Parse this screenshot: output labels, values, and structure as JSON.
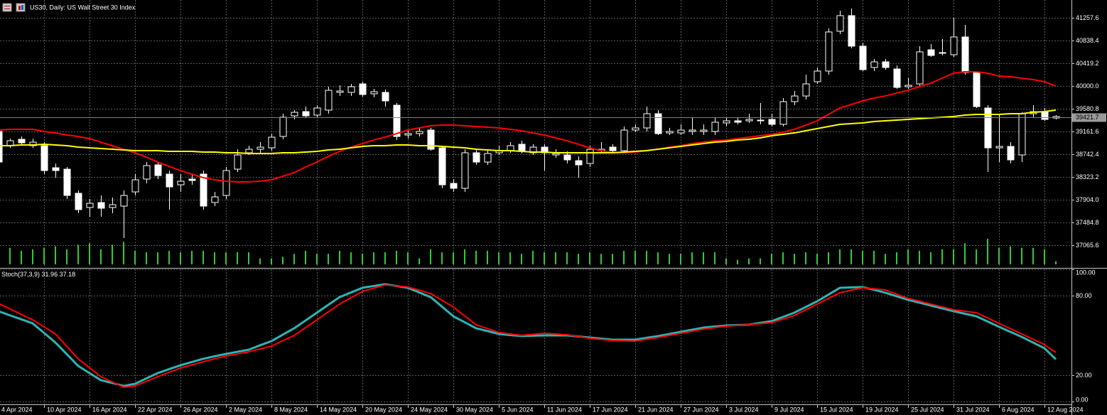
{
  "chart_data": [
    {
      "type": "candlestick",
      "title": "US30, Daily:  US Wall Street 30 Index",
      "categories": [
        "4 Apr 2024",
        null,
        null,
        null,
        "10 Apr 2024",
        null,
        null,
        null,
        "16 Apr 2024",
        null,
        null,
        null,
        "22 Apr 2024",
        null,
        null,
        null,
        "26 Apr 2024",
        null,
        null,
        null,
        "2 May 2024",
        null,
        null,
        null,
        "8 May 2024",
        null,
        null,
        null,
        "14 May 2024",
        null,
        null,
        null,
        "20 May 2024",
        null,
        null,
        null,
        "24 May 2024",
        null,
        null,
        null,
        "30 May 2024",
        null,
        null,
        null,
        "5 Jun 2024",
        null,
        null,
        null,
        "11 Jun 2024",
        null,
        null,
        null,
        "17 Jun 2024",
        null,
        null,
        null,
        "21 Jun 2024",
        null,
        null,
        null,
        "27 Jun 2024",
        null,
        null,
        null,
        "3 Jul 2024",
        null,
        null,
        null,
        "9 Jul 2024",
        null,
        null,
        null,
        "15 Jul 2024",
        null,
        null,
        null,
        "19 Jul 2024",
        null,
        null,
        null,
        "25 Jul 2024",
        null,
        null,
        null,
        "31 Jul 2024",
        null,
        null,
        null,
        "6 Aug 2024",
        null,
        null,
        null,
        "12 Aug 2024",
        null
      ],
      "open": [
        39162,
        38900,
        39017,
        38900,
        38900,
        38493,
        38467,
        38022,
        37760,
        37852,
        37760,
        37786,
        38048,
        38284,
        38546,
        38376,
        38179,
        38284,
        38376,
        37852,
        37983,
        38467,
        38769,
        38834,
        38860,
        39070,
        39450,
        39528,
        39463,
        39555,
        39882,
        39882,
        40039,
        39856,
        39882,
        39646,
        39096,
        39122,
        39188,
        38860,
        38205,
        38114,
        38769,
        38598,
        38769,
        38808,
        38926,
        38769,
        38873,
        38729,
        38729,
        38624,
        38572,
        38808,
        38873,
        38808,
        39188,
        39227,
        39489,
        39135,
        39135,
        39162,
        39162,
        39162,
        39319,
        39358,
        39358,
        39358,
        39384,
        39293,
        39712,
        39816,
        40079,
        40275,
        41009,
        41297,
        40734,
        40341,
        40445,
        40314,
        39987,
        40039,
        40668,
        40603,
        40576,
        40904,
        40249,
        39594,
        38860,
        38886,
        38729,
        39489,
        39528,
        39410
      ],
      "high": [
        39227,
        39031,
        39070,
        39031,
        38965,
        38572,
        38507,
        38074,
        37917,
        37983,
        37943,
        38074,
        38376,
        38598,
        38598,
        38441,
        38376,
        38376,
        38441,
        38048,
        38507,
        38834,
        38900,
        38965,
        39122,
        39489,
        39555,
        39620,
        39646,
        39987,
        40013,
        40039,
        40079,
        39948,
        39934,
        39686,
        39201,
        39227,
        39227,
        38900,
        38284,
        38834,
        38834,
        38834,
        38900,
        38965,
        38991,
        38926,
        38926,
        38834,
        38795,
        38703,
        38900,
        38965,
        38926,
        39253,
        39293,
        39620,
        39555,
        39227,
        39293,
        39424,
        39293,
        39424,
        39424,
        39424,
        39489,
        39686,
        39489,
        39777,
        39908,
        40210,
        40341,
        41061,
        41389,
        41428,
        40799,
        40498,
        40498,
        40380,
        40144,
        40734,
        40773,
        40865,
        41258,
        41127,
        40275,
        39646,
        39489,
        38965,
        39515,
        39646,
        39594,
        39463
      ],
      "low": [
        38572,
        38860,
        38900,
        38860,
        38376,
        38310,
        37917,
        37655,
        37590,
        37590,
        37655,
        37197,
        37983,
        38205,
        38284,
        37721,
        38048,
        38179,
        37721,
        37786,
        37917,
        38415,
        38729,
        38769,
        38808,
        39017,
        39384,
        39410,
        39410,
        39489,
        39816,
        39816,
        39803,
        39790,
        39620,
        39004,
        39031,
        39070,
        38808,
        38114,
        38048,
        38048,
        38546,
        38546,
        38729,
        38769,
        38755,
        38729,
        38441,
        38677,
        38572,
        38310,
        38507,
        38769,
        38769,
        38769,
        39148,
        39162,
        39096,
        39096,
        39096,
        39096,
        39096,
        39096,
        39253,
        39293,
        39319,
        39293,
        39253,
        39253,
        39646,
        39751,
        40039,
        40210,
        40956,
        40694,
        40275,
        40275,
        40301,
        39948,
        39948,
        39987,
        40537,
        40563,
        40537,
        40210,
        39594,
        38415,
        38598,
        38572,
        38598,
        39424,
        39358,
        39384
      ],
      "close": [
        38598,
        38991,
        38952,
        38965,
        38441,
        38441,
        37983,
        37721,
        37838,
        37747,
        37812,
        37983,
        38271,
        38533,
        38349,
        38140,
        38245,
        38258,
        37786,
        37956,
        38441,
        38729,
        38834,
        38873,
        39057,
        39424,
        39515,
        39450,
        39594,
        39921,
        39908,
        39987,
        39843,
        39895,
        39725,
        39070,
        39122,
        39162,
        38834,
        38179,
        38114,
        38769,
        38598,
        38755,
        38808,
        38900,
        38808,
        38873,
        38769,
        38755,
        38638,
        38546,
        38834,
        38834,
        38808,
        39188,
        39227,
        39489,
        39122,
        39162,
        39188,
        39188,
        39188,
        39332,
        39358,
        39332,
        39384,
        39371,
        39293,
        39712,
        39816,
        40039,
        40275,
        40996,
        41297,
        40734,
        40301,
        40445,
        40341,
        39974,
        40013,
        40629,
        40563,
        40616,
        40904,
        40249,
        39620,
        38860,
        38886,
        38638,
        39489,
        39528,
        39384,
        39437
      ],
      "volume": [
        20,
        22,
        18,
        20,
        22,
        24,
        20,
        26,
        28,
        20,
        26,
        30,
        18,
        16,
        16,
        18,
        16,
        18,
        18,
        16,
        16,
        16,
        16,
        8,
        8,
        10,
        14,
        18,
        14,
        14,
        18,
        16,
        14,
        16,
        16,
        18,
        16,
        8,
        20,
        16,
        16,
        20,
        18,
        18,
        16,
        16,
        14,
        18,
        16,
        16,
        16,
        14,
        16,
        14,
        14,
        18,
        18,
        18,
        16,
        14,
        14,
        16,
        16,
        16,
        8,
        6,
        8,
        8,
        14,
        16,
        14,
        16,
        14,
        16,
        20,
        20,
        18,
        18,
        14,
        16,
        20,
        18,
        16,
        20,
        20,
        28,
        20,
        34,
        22,
        24,
        22,
        22,
        20,
        4
      ],
      "volume_color": "#33cc33",
      "series": [
        {
          "color": "#ff0000",
          "values": [
            39188,
            39201,
            39201,
            39201,
            39162,
            39135,
            39096,
            39070,
            39031,
            38965,
            38900,
            38834,
            38769,
            38690,
            38598,
            38520,
            38441,
            38376,
            38310,
            38271,
            38245,
            38231,
            38231,
            38245,
            38271,
            38336,
            38402,
            38507,
            38598,
            38703,
            38795,
            38873,
            38939,
            39004,
            39057,
            39122,
            39188,
            39227,
            39266,
            39279,
            39279,
            39266,
            39253,
            39240,
            39227,
            39201,
            39175,
            39135,
            39096,
            39044,
            38991,
            38926,
            38860,
            38808,
            38769,
            38769,
            38782,
            38808,
            38834,
            38873,
            38900,
            38939,
            38965,
            38991,
            39004,
            39031,
            39057,
            39083,
            39109,
            39148,
            39201,
            39279,
            39358,
            39476,
            39594,
            39659,
            39725,
            39777,
            39816,
            39869,
            39921,
            39987,
            40052,
            40144,
            40236,
            40262,
            40262,
            40236,
            40183,
            40170,
            40144,
            40118,
            40079,
            40000
          ]
        },
        {
          "color": "#ffff00",
          "values": [
            38900,
            38900,
            38913,
            38913,
            38926,
            38913,
            38900,
            38873,
            38860,
            38847,
            38834,
            38821,
            38808,
            38808,
            38808,
            38795,
            38795,
            38795,
            38782,
            38782,
            38769,
            38769,
            38755,
            38755,
            38755,
            38769,
            38769,
            38782,
            38795,
            38821,
            38834,
            38860,
            38886,
            38900,
            38900,
            38913,
            38913,
            38900,
            38900,
            38886,
            38873,
            38860,
            38834,
            38821,
            38808,
            38808,
            38795,
            38782,
            38782,
            38769,
            38769,
            38769,
            38769,
            38769,
            38769,
            38782,
            38795,
            38808,
            38834,
            38860,
            38886,
            38913,
            38939,
            38965,
            38978,
            39004,
            39017,
            39044,
            39083,
            39109,
            39135,
            39175,
            39214,
            39253,
            39293,
            39306,
            39319,
            39345,
            39358,
            39371,
            39384,
            39397,
            39410,
            39424,
            39437,
            39463,
            39476,
            39476,
            39476,
            39489,
            39489,
            39515,
            39528,
            39555
          ]
        }
      ],
      "current_price": 39421.7,
      "ylim": [
        36660,
        41585
      ],
      "yticks": [
        41257.6,
        40838.4,
        40419.2,
        {
          "value": 40000,
          "label": "40000.0"
        },
        39580.8,
        39161.6,
        38742.4,
        38323.2,
        {
          "value": 37904,
          "label": "37904.0"
        },
        37484.8,
        37065.6
      ],
      "grid": true
    },
    {
      "type": "line",
      "title": "Stoch(37,3,9)",
      "series": [
        {
          "color": "#2fb3b3",
          "values": [
            68.3,
            65.2,
            62.2,
            59.1,
            51.9,
            44.6,
            35.8,
            26.9,
            21.5,
            16.1,
            14.0,
            11.8,
            13.4,
            17.5,
            21.5,
            24.5,
            27.4,
            29.9,
            32.3,
            34.2,
            36.0,
            37.6,
            39.2,
            42.5,
            45.7,
            50.6,
            55.4,
            61.3,
            67.2,
            73.1,
            79.0,
            82.5,
            86.0,
            87.4,
            88.7,
            87.4,
            86.0,
            82.5,
            79.0,
            71.8,
            64.5,
            60.0,
            55.4,
            53.3,
            51.1,
            50.3,
            49.5,
            49.8,
            50.0,
            50.0,
            50.0,
            49.2,
            48.4,
            47.6,
            46.8,
            46.8,
            46.8,
            48.2,
            49.5,
            51.1,
            52.7,
            54.3,
            55.9,
            56.7,
            57.5,
            57.8,
            58.1,
            59.5,
            60.8,
            64.0,
            67.2,
            71.5,
            75.8,
            80.9,
            86.0,
            86.3,
            86.6,
            84.5,
            82.3,
            79.6,
            76.9,
            74.8,
            72.6,
            70.5,
            68.3,
            66.4,
            64.5,
            60.5,
            56.5,
            52.7,
            48.9,
            44.6,
            40.3,
            31.96
          ]
        },
        {
          "color": "#ff0000",
          "values": [
            74.2,
            70.1,
            65.9,
            61.8,
            56.5,
            51.1,
            41.7,
            32.3,
            25.6,
            18.8,
            14.8,
            10.8,
            11.8,
            15.3,
            18.8,
            22.1,
            25.3,
            27.7,
            30.1,
            32.3,
            34.4,
            36.0,
            37.6,
            39.8,
            41.9,
            46.0,
            50.0,
            55.9,
            61.8,
            67.8,
            73.7,
            78.5,
            83.3,
            85.8,
            88.2,
            87.4,
            86.6,
            84.2,
            81.7,
            76.6,
            71.5,
            64.8,
            58.1,
            55.2,
            52.2,
            51.1,
            50.0,
            50.8,
            51.6,
            51.1,
            50.5,
            49.2,
            47.8,
            47.0,
            46.2,
            46.0,
            45.7,
            47.1,
            48.4,
            50.0,
            51.6,
            53.2,
            54.8,
            55.9,
            57.0,
            57.6,
            58.1,
            58.9,
            59.7,
            62.4,
            65.1,
            69.4,
            73.7,
            78.0,
            82.3,
            84.2,
            86.0,
            85.2,
            84.4,
            81.2,
            78.0,
            75.9,
            73.7,
            71.6,
            69.4,
            68.3,
            67.2,
            63.2,
            59.1,
            55.1,
            51.1,
            47.1,
            43.0,
            37.18
          ]
        }
      ],
      "ylim": [
        -1.6,
        100
      ],
      "yticks": [
        {
          "value": 100,
          "label": "100.00"
        },
        {
          "value": 80,
          "label": "80.00"
        },
        {
          "value": 20,
          "label": "20.00"
        },
        {
          "value": 0,
          "label": "0.00"
        }
      ],
      "grid": true
    }
  ]
}
